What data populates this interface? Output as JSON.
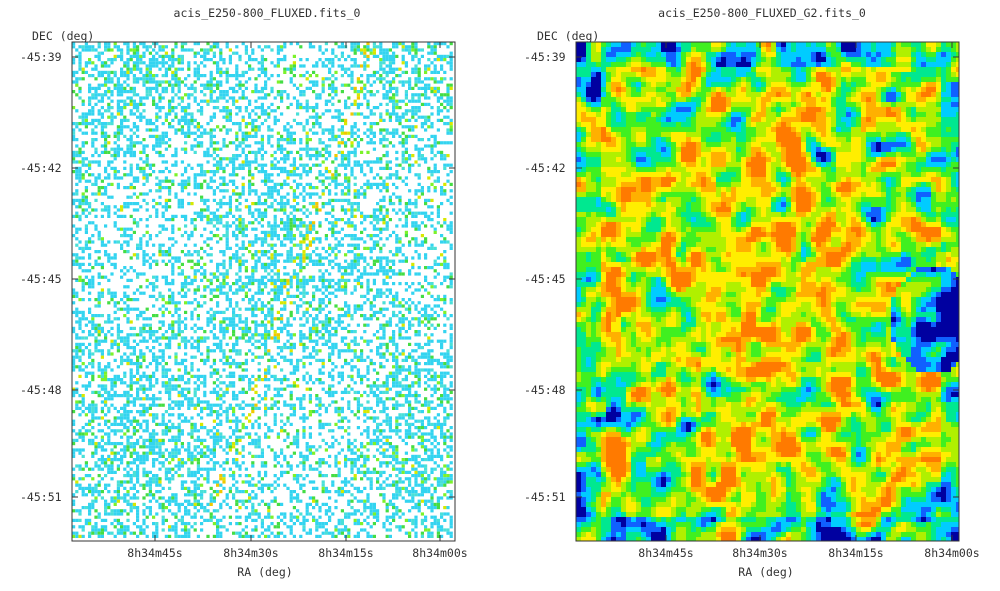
{
  "chart_data": [
    {
      "type": "heatmap",
      "title": "acis_E250-800_FLUXED.fits_0",
      "xlabel": "RA (deg)",
      "ylabel": "DEC (deg)",
      "x_ticks": [
        "8h34m45s",
        "8h34m30s",
        "8h34m15s",
        "8h34m00s"
      ],
      "y_ticks": [
        "-45:39",
        "-45:42",
        "-45:45",
        "-45:48",
        "-45:51"
      ],
      "style": "sparse binned counts on white background (cyan/green/yellow pixels)",
      "colors": [
        "#33d4f0",
        "#4ae0d8",
        "#44dd44",
        "#7cf22a",
        "#d8e800",
        "#f0c800"
      ]
    },
    {
      "type": "heatmap",
      "title": "acis_E250-800_FLUXED_G2.fits_0",
      "xlabel": "RA (deg)",
      "ylabel": "DEC (deg)",
      "x_ticks": [
        "8h34m45s",
        "8h34m30s",
        "8h34m15s",
        "8h34m00s"
      ],
      "y_ticks": [
        "-45:39",
        "-45:42",
        "-45:45",
        "-45:48",
        "-45:51"
      ],
      "style": "smoothed intensity map (blue-cyan-green-yellow-orange)",
      "colors": [
        "#0000a0",
        "#1060ff",
        "#00ccff",
        "#00e890",
        "#40f020",
        "#b0f000",
        "#ffee00",
        "#ffb000",
        "#ff7a00"
      ]
    }
  ]
}
